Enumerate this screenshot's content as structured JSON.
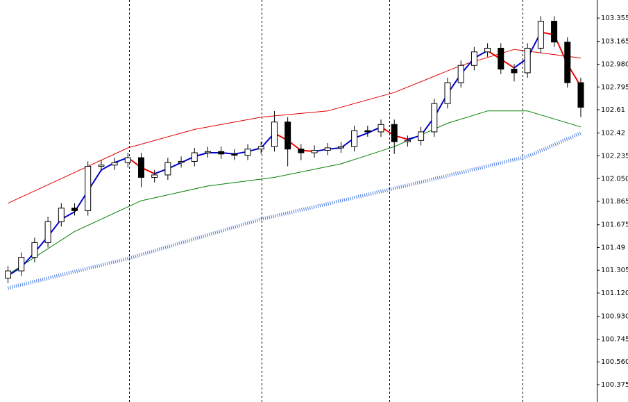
{
  "chart_data": {
    "type": "candlestick",
    "x": [
      0,
      1,
      2,
      3,
      4,
      5,
      6,
      7,
      8,
      9,
      10,
      11,
      12,
      13,
      14,
      15,
      16,
      17,
      18,
      19,
      20,
      21,
      22,
      23,
      24,
      25,
      26,
      27,
      28,
      29,
      30,
      31,
      32,
      33,
      34,
      35,
      36,
      37,
      38,
      39,
      40,
      41,
      42,
      43
    ],
    "open": [
      101.24,
      101.3,
      101.41,
      101.53,
      101.7,
      101.81,
      101.79,
      102.15,
      102.16,
      102.18,
      102.22,
      102.06,
      102.08,
      102.18,
      102.19,
      102.26,
      102.27,
      102.25,
      102.24,
      102.29,
      102.31,
      102.51,
      102.29,
      102.26,
      102.28,
      102.3,
      102.31,
      102.44,
      102.43,
      102.49,
      102.35,
      102.36,
      102.43,
      102.66,
      102.83,
      102.97,
      103.08,
      103.11,
      102.94,
      102.91,
      103.11,
      103.33,
      103.16,
      102.83
    ],
    "high": [
      101.34,
      101.45,
      101.57,
      101.74,
      101.85,
      101.85,
      102.19,
      102.2,
      102.22,
      102.26,
      102.26,
      102.12,
      102.22,
      102.23,
      102.3,
      102.31,
      102.31,
      102.29,
      102.33,
      102.35,
      102.6,
      102.55,
      102.33,
      102.32,
      102.34,
      102.35,
      102.48,
      102.48,
      102.53,
      102.53,
      102.4,
      102.47,
      102.7,
      102.87,
      103.01,
      103.12,
      103.15,
      103.15,
      102.98,
      103.15,
      103.37,
      103.37,
      103.2,
      102.87
    ],
    "low": [
      101.2,
      101.26,
      101.37,
      101.49,
      101.66,
      101.75,
      101.75,
      102.11,
      102.12,
      102.14,
      101.98,
      102.02,
      102.04,
      102.14,
      102.15,
      102.22,
      102.21,
      102.2,
      102.2,
      102.25,
      102.27,
      102.15,
      102.2,
      102.22,
      102.24,
      102.26,
      102.27,
      102.39,
      102.39,
      102.25,
      102.31,
      102.32,
      102.39,
      102.62,
      102.79,
      102.93,
      103.04,
      102.9,
      102.84,
      102.87,
      103.07,
      103.12,
      102.79,
      102.55
    ],
    "close": [
      101.3,
      101.41,
      101.53,
      101.7,
      101.81,
      101.79,
      102.15,
      102.16,
      102.18,
      102.22,
      102.06,
      102.08,
      102.18,
      102.19,
      102.26,
      102.27,
      102.25,
      102.24,
      102.29,
      102.31,
      102.51,
      102.29,
      102.26,
      102.28,
      102.3,
      102.31,
      102.44,
      102.43,
      102.49,
      102.35,
      102.36,
      102.43,
      102.66,
      102.83,
      102.97,
      103.08,
      103.11,
      102.94,
      102.91,
      103.11,
      103.33,
      103.16,
      102.83,
      102.63
    ],
    "up_color": "#ffffff",
    "down_color": "#000000",
    "wick_color": "#000000",
    "series": [
      {
        "color": "#e00000",
        "width": 1,
        "x": [
          0,
          5,
          9,
          14,
          19,
          24,
          29,
          34,
          38,
          43
        ],
        "values": [
          101.85,
          102.1,
          102.3,
          102.45,
          102.55,
          102.6,
          102.75,
          102.97,
          103.1,
          103.03
        ]
      },
      {
        "color": "#008000",
        "width": 1,
        "x": [
          0,
          5,
          10,
          15,
          20,
          25,
          29,
          33,
          36,
          39,
          43
        ],
        "values": [
          101.27,
          101.62,
          101.87,
          101.99,
          102.06,
          102.17,
          102.31,
          102.5,
          102.6,
          102.6,
          102.47
        ]
      },
      {
        "color": "#4a7be0",
        "width": 5,
        "x": [
          0,
          9,
          19,
          29,
          39,
          43
        ],
        "values": [
          101.16,
          101.4,
          101.72,
          101.97,
          102.23,
          102.42
        ]
      },
      {
        "color": "#0000cc",
        "width": 2,
        "x": [
          0,
          1,
          2,
          3,
          4,
          5,
          6,
          7,
          8,
          9,
          10,
          11,
          12,
          13,
          14,
          15,
          16,
          17,
          18,
          19,
          20,
          21,
          22,
          23,
          24,
          25,
          26,
          27,
          28,
          29,
          30,
          31,
          32,
          33,
          34,
          35,
          36,
          37,
          38,
          39,
          40,
          41,
          42,
          43
        ],
        "values": [
          101.26,
          101.33,
          101.45,
          101.58,
          101.72,
          101.78,
          101.95,
          102.12,
          102.18,
          102.22,
          null,
          102.09,
          102.13,
          102.18,
          102.23,
          102.26,
          102.26,
          102.25,
          102.27,
          102.3,
          102.42,
          null,
          null,
          102.27,
          102.29,
          102.3,
          102.38,
          102.42,
          102.47,
          null,
          102.37,
          102.4,
          102.55,
          102.74,
          102.9,
          103.03,
          103.09,
          null,
          102.95,
          103.03,
          103.24,
          null,
          null,
          null
        ]
      },
      {
        "color": "#ee0000",
        "width": 2,
        "x": [
          0,
          1,
          2,
          3,
          4,
          5,
          6,
          7,
          8,
          9,
          10,
          11,
          12,
          13,
          14,
          15,
          16,
          17,
          18,
          19,
          20,
          21,
          22,
          23,
          24,
          25,
          26,
          27,
          28,
          29,
          30,
          31,
          32,
          33,
          34,
          35,
          36,
          37,
          38,
          39,
          40,
          41,
          42,
          43
        ],
        "values": [
          null,
          null,
          null,
          null,
          null,
          null,
          null,
          null,
          null,
          102.22,
          102.14,
          102.09,
          null,
          null,
          null,
          null,
          null,
          null,
          null,
          null,
          102.42,
          102.36,
          102.28,
          102.27,
          null,
          null,
          null,
          null,
          102.47,
          102.4,
          102.37,
          null,
          null,
          null,
          null,
          null,
          103.09,
          103.02,
          102.95,
          null,
          103.24,
          103.22,
          102.98,
          102.8
        ]
      }
    ],
    "xlim": [
      -0.6,
      44.2
    ],
    "ylim": [
      100.234,
      103.502
    ],
    "yticks": [
      103.355,
      103.165,
      {
        "value": 102.98,
        "label": "102.980"
      },
      102.795,
      102.61,
      102.42,
      102.235,
      {
        "value": 102.05,
        "label": "102.050"
      },
      101.865,
      101.675,
      101.49,
      101.305,
      {
        "value": 101.12,
        "label": "101.120"
      },
      {
        "value": 100.93,
        "label": "100.930"
      },
      100.745,
      {
        "value": 100.56,
        "label": "100.560"
      },
      100.375
    ]
  }
}
